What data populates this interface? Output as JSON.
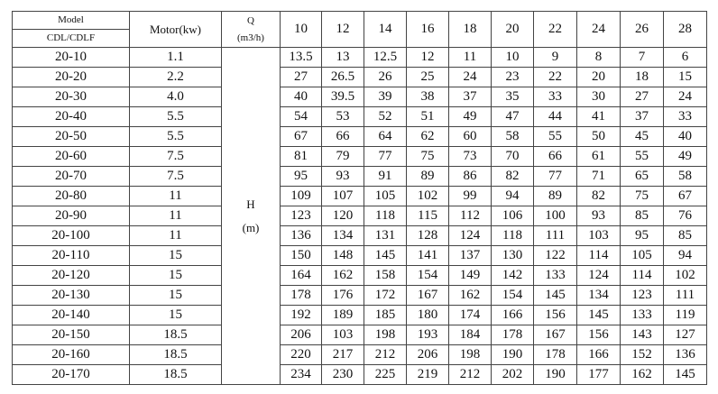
{
  "header": {
    "model_label": "Model",
    "model_sub_label": "CDL/CDLF",
    "motor_label": "Motor(kw)",
    "q_label": "Q",
    "q_unit": "(m3/h)",
    "h_label": "H",
    "h_unit": "(m)",
    "flows": [
      "10",
      "12",
      "14",
      "16",
      "18",
      "20",
      "22",
      "24",
      "26",
      "28"
    ]
  },
  "rows": [
    {
      "model": "20-10",
      "motor": "1.1",
      "h": [
        "13.5",
        "13",
        "12.5",
        "12",
        "11",
        "10",
        "9",
        "8",
        "7",
        "6"
      ]
    },
    {
      "model": "20-20",
      "motor": "2.2",
      "h": [
        "27",
        "26.5",
        "26",
        "25",
        "24",
        "23",
        "22",
        "20",
        "18",
        "15"
      ]
    },
    {
      "model": "20-30",
      "motor": "4.0",
      "h": [
        "40",
        "39.5",
        "39",
        "38",
        "37",
        "35",
        "33",
        "30",
        "27",
        "24"
      ]
    },
    {
      "model": "20-40",
      "motor": "5.5",
      "h": [
        "54",
        "53",
        "52",
        "51",
        "49",
        "47",
        "44",
        "41",
        "37",
        "33"
      ]
    },
    {
      "model": "20-50",
      "motor": "5.5",
      "h": [
        "67",
        "66",
        "64",
        "62",
        "60",
        "58",
        "55",
        "50",
        "45",
        "40"
      ]
    },
    {
      "model": "20-60",
      "motor": "7.5",
      "h": [
        "81",
        "79",
        "77",
        "75",
        "73",
        "70",
        "66",
        "61",
        "55",
        "49"
      ]
    },
    {
      "model": "20-70",
      "motor": "7.5",
      "h": [
        "95",
        "93",
        "91",
        "89",
        "86",
        "82",
        "77",
        "71",
        "65",
        "58"
      ]
    },
    {
      "model": "20-80",
      "motor": "11",
      "h": [
        "109",
        "107",
        "105",
        "102",
        "99",
        "94",
        "89",
        "82",
        "75",
        "67"
      ]
    },
    {
      "model": "20-90",
      "motor": "11",
      "h": [
        "123",
        "120",
        "118",
        "115",
        "112",
        "106",
        "100",
        "93",
        "85",
        "76"
      ]
    },
    {
      "model": "20-100",
      "motor": "11",
      "h": [
        "136",
        "134",
        "131",
        "128",
        "124",
        "118",
        "111",
        "103",
        "95",
        "85"
      ]
    },
    {
      "model": "20-110",
      "motor": "15",
      "h": [
        "150",
        "148",
        "145",
        "141",
        "137",
        "130",
        "122",
        "114",
        "105",
        "94"
      ]
    },
    {
      "model": "20-120",
      "motor": "15",
      "h": [
        "164",
        "162",
        "158",
        "154",
        "149",
        "142",
        "133",
        "124",
        "114",
        "102"
      ]
    },
    {
      "model": "20-130",
      "motor": "15",
      "h": [
        "178",
        "176",
        "172",
        "167",
        "162",
        "154",
        "145",
        "134",
        "123",
        "111"
      ]
    },
    {
      "model": "20-140",
      "motor": "15",
      "h": [
        "192",
        "189",
        "185",
        "180",
        "174",
        "166",
        "156",
        "145",
        "133",
        "119"
      ]
    },
    {
      "model": "20-150",
      "motor": "18.5",
      "h": [
        "206",
        "103",
        "198",
        "193",
        "184",
        "178",
        "167",
        "156",
        "143",
        "127"
      ]
    },
    {
      "model": "20-160",
      "motor": "18.5",
      "h": [
        "220",
        "217",
        "212",
        "206",
        "198",
        "190",
        "178",
        "166",
        "152",
        "136"
      ]
    },
    {
      "model": "20-170",
      "motor": "18.5",
      "h": [
        "234",
        "230",
        "225",
        "219",
        "212",
        "202",
        "190",
        "177",
        "162",
        "145"
      ]
    }
  ]
}
